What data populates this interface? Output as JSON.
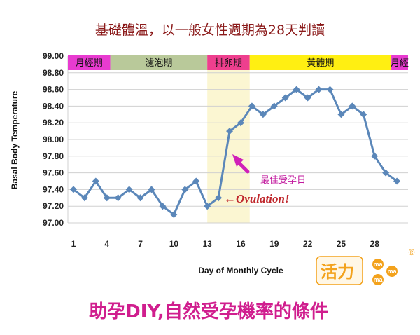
{
  "header": {
    "title": "基礎體溫，以一般女性週期為28天判讀"
  },
  "chart_data": {
    "type": "line",
    "title": "基礎體溫，以一般女性週期為28天判讀",
    "xlabel": "Day of Monthly Cycle",
    "ylabel": "Basal Body Temperature",
    "ylim": [
      97.0,
      99.0
    ],
    "yticks": [
      "99.00",
      "98.80",
      "98.60",
      "98.40",
      "98.20",
      "98.00",
      "97.80",
      "97.60",
      "97.40",
      "97.20",
      "97.00"
    ],
    "xticks": [
      "1",
      "4",
      "7",
      "10",
      "13",
      "16",
      "19",
      "22",
      "25",
      "28"
    ],
    "xticks_values": [
      1,
      4,
      7,
      10,
      13,
      16,
      19,
      22,
      25,
      28
    ],
    "grid": true,
    "series": [
      {
        "x": [
          1,
          2,
          3,
          4,
          5,
          6,
          7,
          8,
          9,
          10,
          11,
          12,
          13,
          14,
          15,
          16,
          17,
          18,
          19,
          20,
          21,
          22,
          23,
          24,
          25,
          26,
          27,
          28,
          29,
          30
        ],
        "values": [
          97.4,
          97.3,
          97.5,
          97.3,
          97.3,
          97.4,
          97.3,
          97.4,
          97.2,
          97.1,
          97.4,
          97.5,
          97.2,
          97.3,
          98.1,
          98.2,
          98.4,
          98.3,
          98.4,
          98.5,
          98.6,
          98.5,
          98.6,
          98.6,
          98.3,
          98.4,
          98.3,
          97.8,
          97.6,
          97.5
        ]
      }
    ],
    "phases": [
      {
        "label": "月經期",
        "start": 0.5,
        "end": 4.3,
        "color": "#e83bd0"
      },
      {
        "label": "濾泡期",
        "start": 4.3,
        "end": 13.0,
        "color": "#b9c99a"
      },
      {
        "label": "排卵期",
        "start": 13.0,
        "end": 16.8,
        "color": "#ee3f8e"
      },
      {
        "label": "黃體期",
        "start": 16.8,
        "end": 29.5,
        "color": "#ffef12"
      },
      {
        "label": "月經",
        "start": 29.5,
        "end": 31.5,
        "color": "#e83bd0"
      }
    ],
    "highlight_band": {
      "start": 13.0,
      "end": 16.8,
      "color": "#fbf6d2"
    },
    "annotations": {
      "ovulation": "←Ovulation!",
      "best_day": "最佳受孕日"
    },
    "line_color": "#5b87b9",
    "marker_color": "#5b87b9"
  },
  "logo": {
    "main": "活力",
    "dots": [
      "ma",
      "ma",
      "ma"
    ],
    "registered": "®"
  },
  "footer": {
    "text": "助孕DIY,自然受孕機率的條件"
  }
}
